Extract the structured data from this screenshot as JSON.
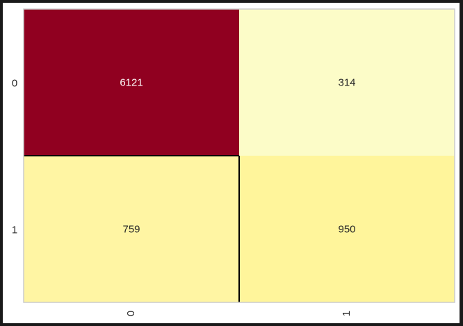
{
  "chart_data": {
    "type": "heatmap",
    "title": "",
    "xlabel": "",
    "ylabel": "",
    "x_categories": [
      "0",
      "1"
    ],
    "y_categories": [
      "0",
      "1"
    ],
    "values": [
      [
        6121,
        314
      ],
      [
        759,
        950
      ]
    ],
    "cell_colors": [
      [
        "#900020",
        "#fcfcc8"
      ],
      [
        "#fff5a3",
        "#fff59b"
      ]
    ],
    "cell_text_colors": [
      [
        "#ffffff",
        "#262626"
      ],
      [
        "#262626",
        "#262626"
      ]
    ],
    "grid": false,
    "legend": "none"
  }
}
